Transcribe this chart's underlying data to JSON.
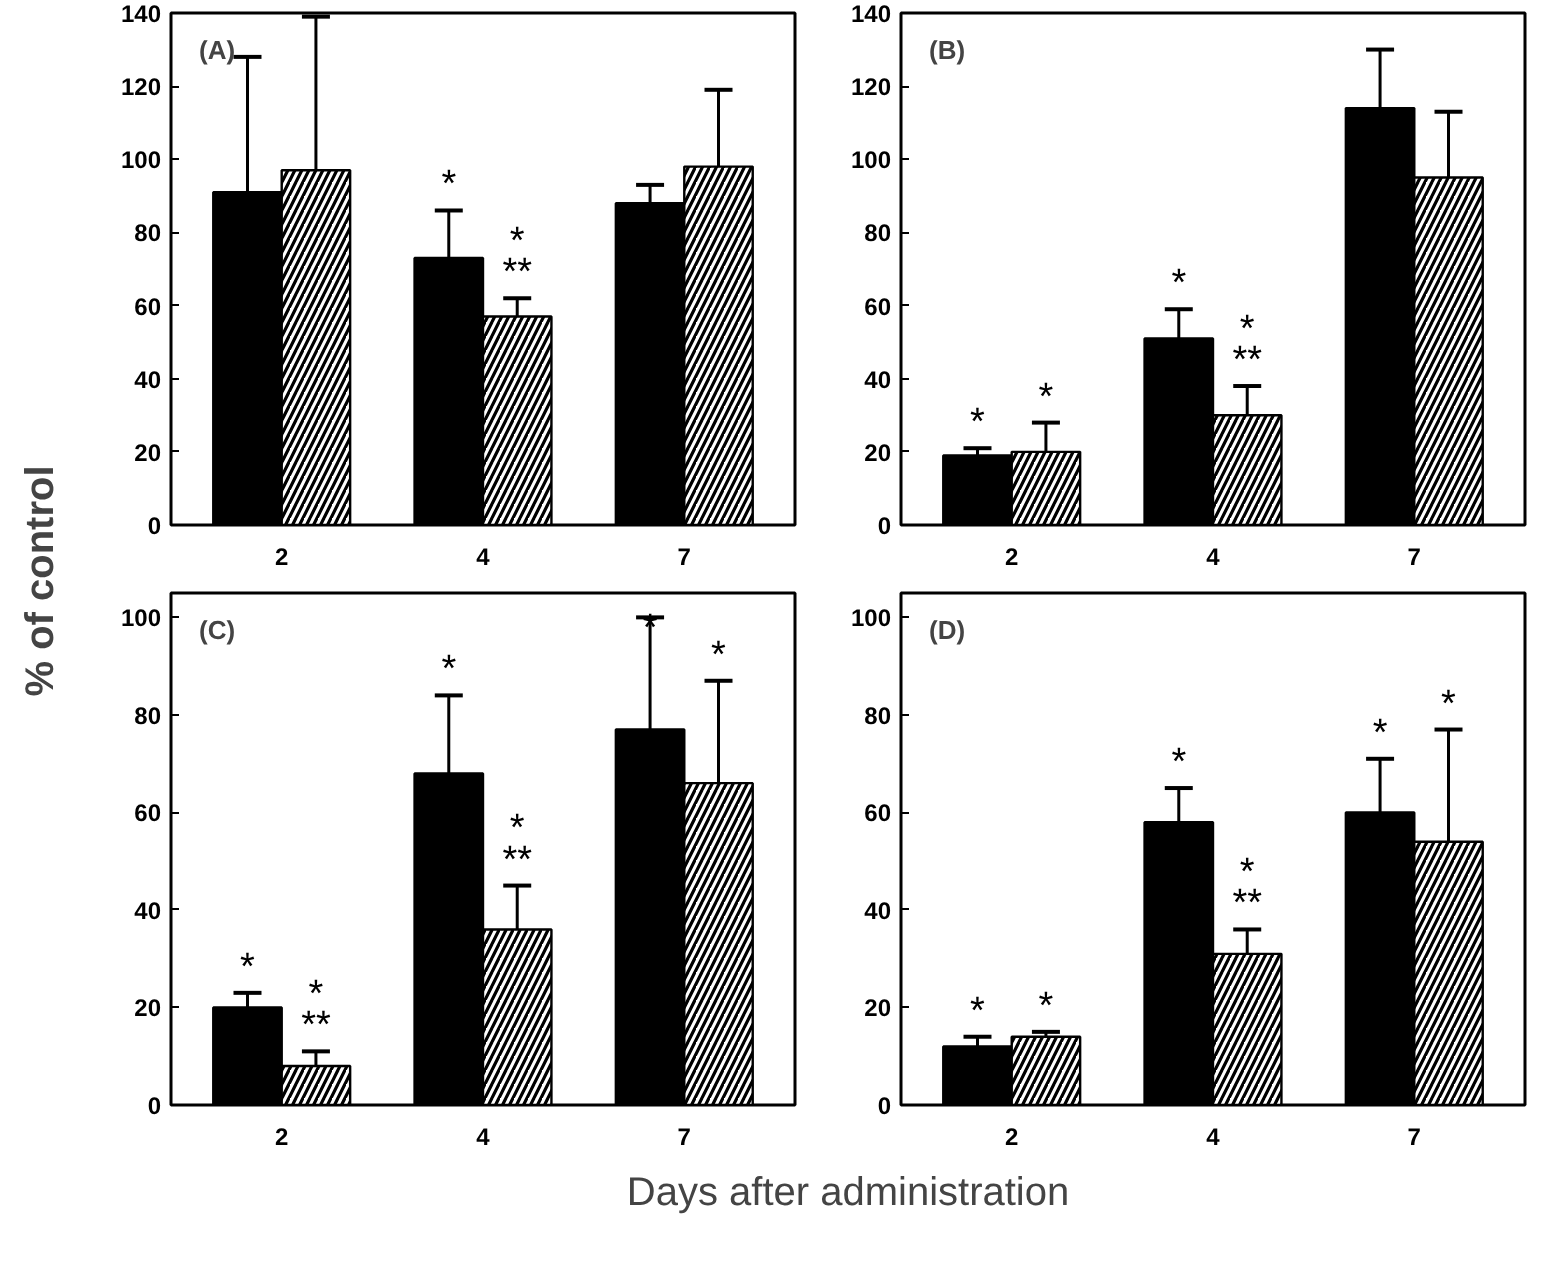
{
  "chart_data": [
    {
      "type": "bar",
      "title": "(A)",
      "categories": [
        "2",
        "4",
        "7"
      ],
      "ylim": [
        0,
        140
      ],
      "yticks": [
        0,
        20,
        40,
        60,
        80,
        100,
        120,
        140
      ],
      "grid": false,
      "series": [
        {
          "color": "#000000",
          "values": [
            91,
            73,
            88
          ],
          "errors": [
            [
              91,
              128
            ],
            [
              73,
              86
            ],
            [
              88,
              93
            ]
          ],
          "value_labels": [
            null,
            "*",
            null
          ]
        },
        {
          "color": "#ffffff",
          "values": [
            97,
            57,
            98
          ],
          "errors": [
            [
              97,
              139
            ],
            [
              57,
              62
            ],
            [
              98,
              119
            ]
          ],
          "value_labels": [
            null,
            "*\n**",
            null
          ]
        }
      ]
    },
    {
      "type": "bar",
      "title": "(B)",
      "categories": [
        "2",
        "4",
        "7"
      ],
      "ylim": [
        0,
        140
      ],
      "yticks": [
        0,
        20,
        40,
        60,
        80,
        100,
        120,
        140
      ],
      "grid": false,
      "series": [
        {
          "color": "#000000",
          "values": [
            19,
            51,
            114
          ],
          "errors": [
            [
              19,
              21
            ],
            [
              51,
              59
            ],
            [
              114,
              130
            ]
          ],
          "value_labels": [
            "*",
            "*",
            null
          ]
        },
        {
          "color": "#ffffff",
          "values": [
            20,
            30,
            95
          ],
          "errors": [
            [
              20,
              28
            ],
            [
              30,
              38
            ],
            [
              95,
              113
            ]
          ],
          "value_labels": [
            "*",
            "*\n**",
            null
          ]
        }
      ]
    },
    {
      "type": "bar",
      "title": "(C)",
      "ylabel": "% of control",
      "xlabel": "Days after administration",
      "categories": [
        "2",
        "4",
        "7"
      ],
      "ylim": [
        0,
        105
      ],
      "yticks": [
        0,
        20,
        40,
        60,
        80,
        100
      ],
      "grid": false,
      "series": [
        {
          "color": "#000000",
          "values": [
            20,
            68,
            77
          ],
          "errors": [
            [
              20,
              23
            ],
            [
              68,
              84
            ],
            [
              77,
              100
            ]
          ],
          "value_labels": [
            "*",
            "*",
            "*"
          ]
        },
        {
          "color": "#ffffff",
          "values": [
            8,
            36,
            66
          ],
          "errors": [
            [
              8,
              11
            ],
            [
              36,
              45
            ],
            [
              66,
              87
            ]
          ],
          "value_labels": [
            "*\n**",
            "*\n**",
            "*"
          ]
        }
      ]
    },
    {
      "type": "bar",
      "title": "(D)",
      "categories": [
        "2",
        "4",
        "7"
      ],
      "ylim": [
        0,
        105
      ],
      "yticks": [
        0,
        20,
        40,
        60,
        80,
        100
      ],
      "grid": false,
      "series": [
        {
          "color": "#000000",
          "values": [
            12,
            58,
            60
          ],
          "errors": [
            [
              12,
              14
            ],
            [
              58,
              65
            ],
            [
              60,
              71
            ]
          ],
          "value_labels": [
            "*",
            "*",
            "*"
          ]
        },
        {
          "color": "#ffffff",
          "values": [
            14,
            31,
            54
          ],
          "errors": [
            [
              14,
              15
            ],
            [
              31,
              36
            ],
            [
              54,
              77
            ]
          ],
          "value_labels": [
            "*",
            "*\n**",
            "*"
          ]
        }
      ]
    }
  ]
}
